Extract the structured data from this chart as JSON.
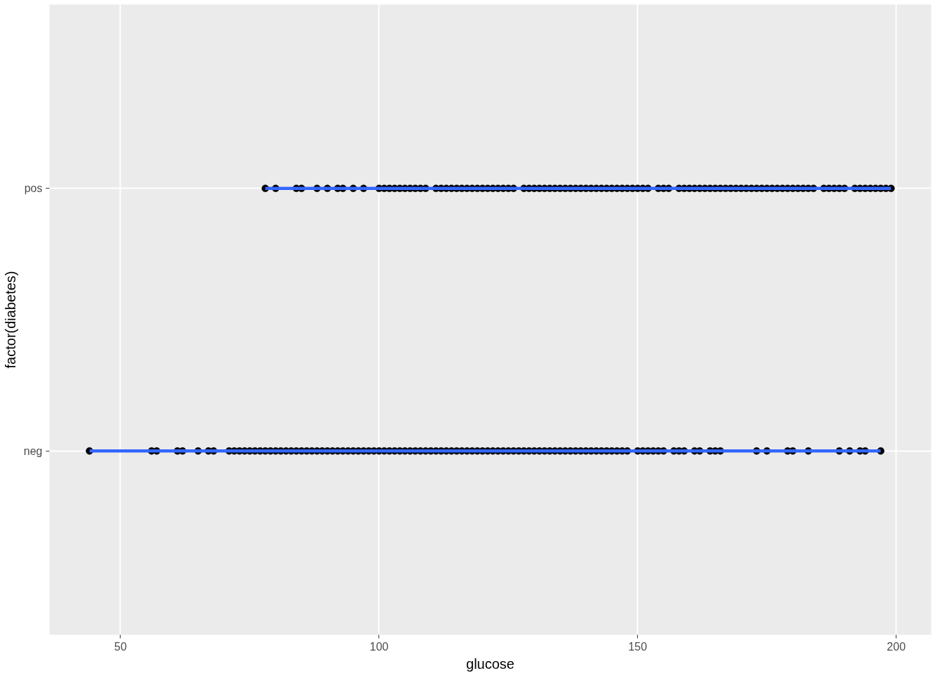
{
  "chart_data": {
    "type": "scatter",
    "orientation": "horizontal",
    "xlabel": "glucose",
    "ylabel": "factor(diabetes)",
    "categories": [
      "pos",
      "neg"
    ],
    "xlim": [
      36.25,
      206.75
    ],
    "xticks": [
      50,
      100,
      150,
      200
    ],
    "grid": true,
    "marker": "circle",
    "series": [
      {
        "color": "#000000",
        "x": [
          "neg",
          "neg",
          "neg",
          "neg",
          "neg",
          "neg",
          "neg",
          "neg",
          "neg",
          "neg",
          "neg",
          "neg",
          "neg",
          "neg",
          "neg",
          "neg",
          "neg",
          "neg",
          "neg",
          "neg",
          "neg",
          "neg",
          "neg",
          "neg",
          "neg",
          "neg",
          "neg",
          "neg",
          "neg",
          "neg",
          "neg",
          "neg",
          "neg",
          "neg",
          "neg",
          "neg",
          "neg",
          "neg",
          "neg",
          "neg",
          "neg",
          "neg",
          "neg",
          "neg",
          "neg",
          "neg",
          "neg",
          "neg",
          "neg",
          "neg",
          "neg",
          "neg",
          "neg",
          "neg",
          "neg",
          "neg",
          "neg",
          "neg",
          "neg",
          "neg",
          "neg",
          "neg",
          "neg",
          "neg",
          "neg",
          "neg",
          "neg",
          "neg",
          "neg",
          "neg",
          "neg",
          "neg",
          "neg",
          "neg",
          "neg",
          "neg",
          "neg",
          "neg",
          "neg",
          "neg",
          "neg",
          "neg",
          "neg",
          "neg",
          "neg",
          "neg",
          "neg",
          "neg",
          "neg",
          "neg",
          "neg",
          "neg",
          "neg",
          "neg",
          "neg",
          "neg",
          "neg",
          "neg",
          "neg",
          "neg",
          "neg",
          "neg",
          "neg",
          "neg",
          "neg",
          "neg",
          "neg",
          "neg",
          "neg",
          "neg"
        ],
        "values": [
          44,
          56,
          57,
          61,
          62,
          65,
          67,
          68,
          71,
          72,
          73,
          74,
          75,
          76,
          77,
          78,
          79,
          80,
          81,
          82,
          83,
          84,
          85,
          86,
          87,
          88,
          89,
          90,
          91,
          92,
          93,
          94,
          95,
          96,
          97,
          98,
          99,
          100,
          101,
          102,
          103,
          104,
          105,
          106,
          107,
          108,
          109,
          110,
          111,
          112,
          113,
          114,
          115,
          116,
          117,
          118,
          119,
          120,
          121,
          122,
          123,
          124,
          125,
          126,
          127,
          128,
          129,
          130,
          131,
          132,
          133,
          134,
          135,
          136,
          137,
          138,
          139,
          140,
          141,
          142,
          143,
          144,
          145,
          146,
          147,
          148,
          150,
          151,
          152,
          153,
          154,
          155,
          157,
          158,
          159,
          161,
          162,
          164,
          165,
          166,
          173,
          175,
          179,
          180,
          183,
          189,
          191,
          193,
          194,
          197
        ]
      },
      {
        "color": "#000000",
        "x": [
          "pos",
          "pos",
          "pos",
          "pos",
          "pos",
          "pos",
          "pos",
          "pos",
          "pos",
          "pos",
          "pos",
          "pos",
          "pos",
          "pos",
          "pos",
          "pos",
          "pos",
          "pos",
          "pos",
          "pos",
          "pos",
          "pos",
          "pos",
          "pos",
          "pos",
          "pos",
          "pos",
          "pos",
          "pos",
          "pos",
          "pos",
          "pos",
          "pos",
          "pos",
          "pos",
          "pos",
          "pos",
          "pos",
          "pos",
          "pos",
          "pos",
          "pos",
          "pos",
          "pos",
          "pos",
          "pos",
          "pos",
          "pos",
          "pos",
          "pos",
          "pos",
          "pos",
          "pos",
          "pos",
          "pos",
          "pos",
          "pos",
          "pos",
          "pos",
          "pos",
          "pos",
          "pos",
          "pos",
          "pos",
          "pos",
          "pos",
          "pos",
          "pos",
          "pos",
          "pos",
          "pos",
          "pos",
          "pos",
          "pos",
          "pos",
          "pos",
          "pos",
          "pos",
          "pos",
          "pos",
          "pos",
          "pos",
          "pos",
          "pos",
          "pos",
          "pos",
          "pos",
          "pos",
          "pos",
          "pos",
          "pos",
          "pos",
          "pos",
          "pos",
          "pos",
          "pos",
          "pos",
          "pos",
          "pos",
          "pos",
          "pos",
          "pos",
          "pos",
          "pos"
        ],
        "values": [
          78,
          80,
          84,
          85,
          88,
          90,
          92,
          93,
          95,
          97,
          100,
          101,
          102,
          103,
          104,
          105,
          106,
          107,
          108,
          109,
          111,
          112,
          113,
          114,
          115,
          116,
          117,
          118,
          119,
          120,
          121,
          122,
          123,
          124,
          125,
          126,
          128,
          129,
          130,
          131,
          132,
          133,
          134,
          135,
          136,
          137,
          138,
          139,
          140,
          141,
          142,
          143,
          144,
          145,
          146,
          147,
          148,
          149,
          150,
          151,
          152,
          154,
          155,
          156,
          158,
          159,
          160,
          161,
          162,
          163,
          164,
          165,
          166,
          167,
          168,
          169,
          170,
          171,
          172,
          173,
          174,
          175,
          176,
          177,
          178,
          179,
          180,
          181,
          182,
          183,
          184,
          186,
          187,
          188,
          189,
          190,
          192,
          193,
          194,
          195,
          196,
          197,
          198,
          199
        ]
      },
      {
        "type": "bar",
        "color": "#3366ff",
        "base": [
          78,
          44
        ],
        "values": [
          121,
          153
        ]
      }
    ]
  }
}
